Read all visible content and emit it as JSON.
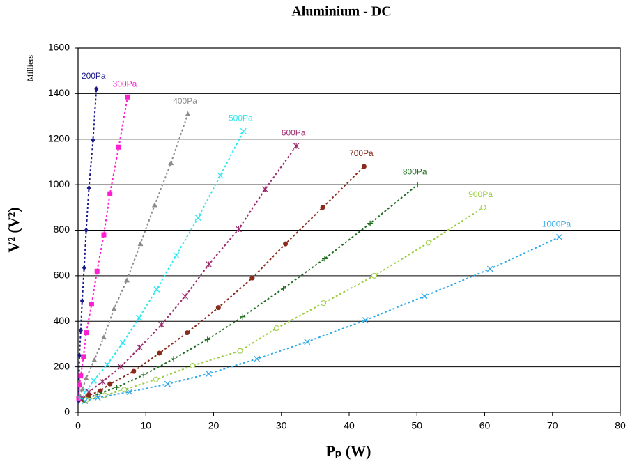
{
  "chart_data": {
    "type": "scatter",
    "title": "Aluminium - DC",
    "xlabel": "Pₚ (W)",
    "ylabel": "V² (V²)",
    "annotation": "Milliers",
    "xlim": [
      0,
      80
    ],
    "xticks": [
      0,
      10,
      20,
      30,
      40,
      50,
      60,
      70,
      80
    ],
    "ylim": [
      0,
      1600
    ],
    "yticks": [
      0,
      200,
      400,
      600,
      800,
      1000,
      1200,
      1400,
      1600
    ],
    "grid": true,
    "series": [
      {
        "name": "200Pa",
        "color": "#1a1a8c",
        "marker": "diamond",
        "x": [
          0.1,
          0.2,
          0.4,
          0.6,
          0.9,
          1.2,
          1.6,
          2.2,
          2.7
        ],
        "values": [
          50,
          250,
          360,
          490,
          635,
          800,
          985,
          1195,
          1420
        ]
      },
      {
        "name": "300Pa",
        "color": "#ff1fd0",
        "marker": "square",
        "x": [
          0.1,
          0.2,
          0.4,
          0.8,
          1.2,
          2.0,
          2.8,
          3.8,
          4.7,
          6.0,
          7.3
        ],
        "values": [
          60,
          120,
          160,
          245,
          350,
          475,
          620,
          780,
          960,
          1165,
          1385
        ]
      },
      {
        "name": "400Pa",
        "color": "#8c8c8c",
        "marker": "triangle",
        "x": [
          0.3,
          0.6,
          1.2,
          2.4,
          3.8,
          5.3,
          7.2,
          9.2,
          11.3,
          13.7,
          16.2
        ],
        "values": [
          70,
          100,
          150,
          230,
          330,
          455,
          580,
          740,
          910,
          1095,
          1310
        ]
      },
      {
        "name": "500Pa",
        "color": "#30e8f0",
        "marker": "x",
        "x": [
          0.5,
          1.2,
          2.3,
          4.3,
          6.6,
          9.0,
          11.6,
          14.5,
          17.7,
          21.0,
          24.4
        ],
        "values": [
          65,
          95,
          140,
          210,
          305,
          415,
          540,
          690,
          855,
          1040,
          1235
        ]
      },
      {
        "name": "600Pa",
        "color": "#9c2a6e",
        "marker": "star",
        "x": [
          0.7,
          1.6,
          3.6,
          6.3,
          9.1,
          12.3,
          15.8,
          19.3,
          23.7,
          27.6,
          32.2
        ],
        "values": [
          60,
          90,
          135,
          200,
          285,
          385,
          510,
          650,
          805,
          980,
          1170
        ]
      },
      {
        "name": "700Pa",
        "color": "#8b2a1a",
        "marker": "circle",
        "x": [
          0.8,
          1.6,
          3.3,
          4.7,
          8.2,
          12.0,
          16.1,
          20.7,
          25.7,
          30.6,
          36.1,
          42.2
        ],
        "values": [
          55,
          75,
          95,
          125,
          180,
          260,
          350,
          460,
          590,
          740,
          900,
          1080
        ]
      },
      {
        "name": "800Pa",
        "color": "#1e6e1e",
        "marker": "plus",
        "x": [
          1.0,
          2.9,
          5.7,
          9.7,
          14.1,
          19.1,
          24.3,
          30.3,
          36.4,
          43.1,
          50.1
        ],
        "values": [
          55,
          80,
          110,
          165,
          235,
          320,
          420,
          545,
          675,
          830,
          1000
        ]
      },
      {
        "name": "900Pa",
        "color": "#9acc40",
        "marker": "ring",
        "x": [
          1.2,
          3.9,
          6.8,
          11.5,
          16.9,
          23.9,
          29.3,
          36.2,
          43.7,
          51.7,
          59.8
        ],
        "values": [
          55,
          75,
          100,
          145,
          205,
          270,
          370,
          480,
          600,
          745,
          900
        ]
      },
      {
        "name": "1000Pa",
        "color": "#2fa8e8",
        "marker": "x",
        "x": [
          1.0,
          2.9,
          7.6,
          13.2,
          19.3,
          26.4,
          33.8,
          42.4,
          51.1,
          60.8,
          71.0
        ],
        "values": [
          50,
          65,
          90,
          125,
          170,
          235,
          310,
          405,
          510,
          630,
          770
        ]
      }
    ]
  }
}
